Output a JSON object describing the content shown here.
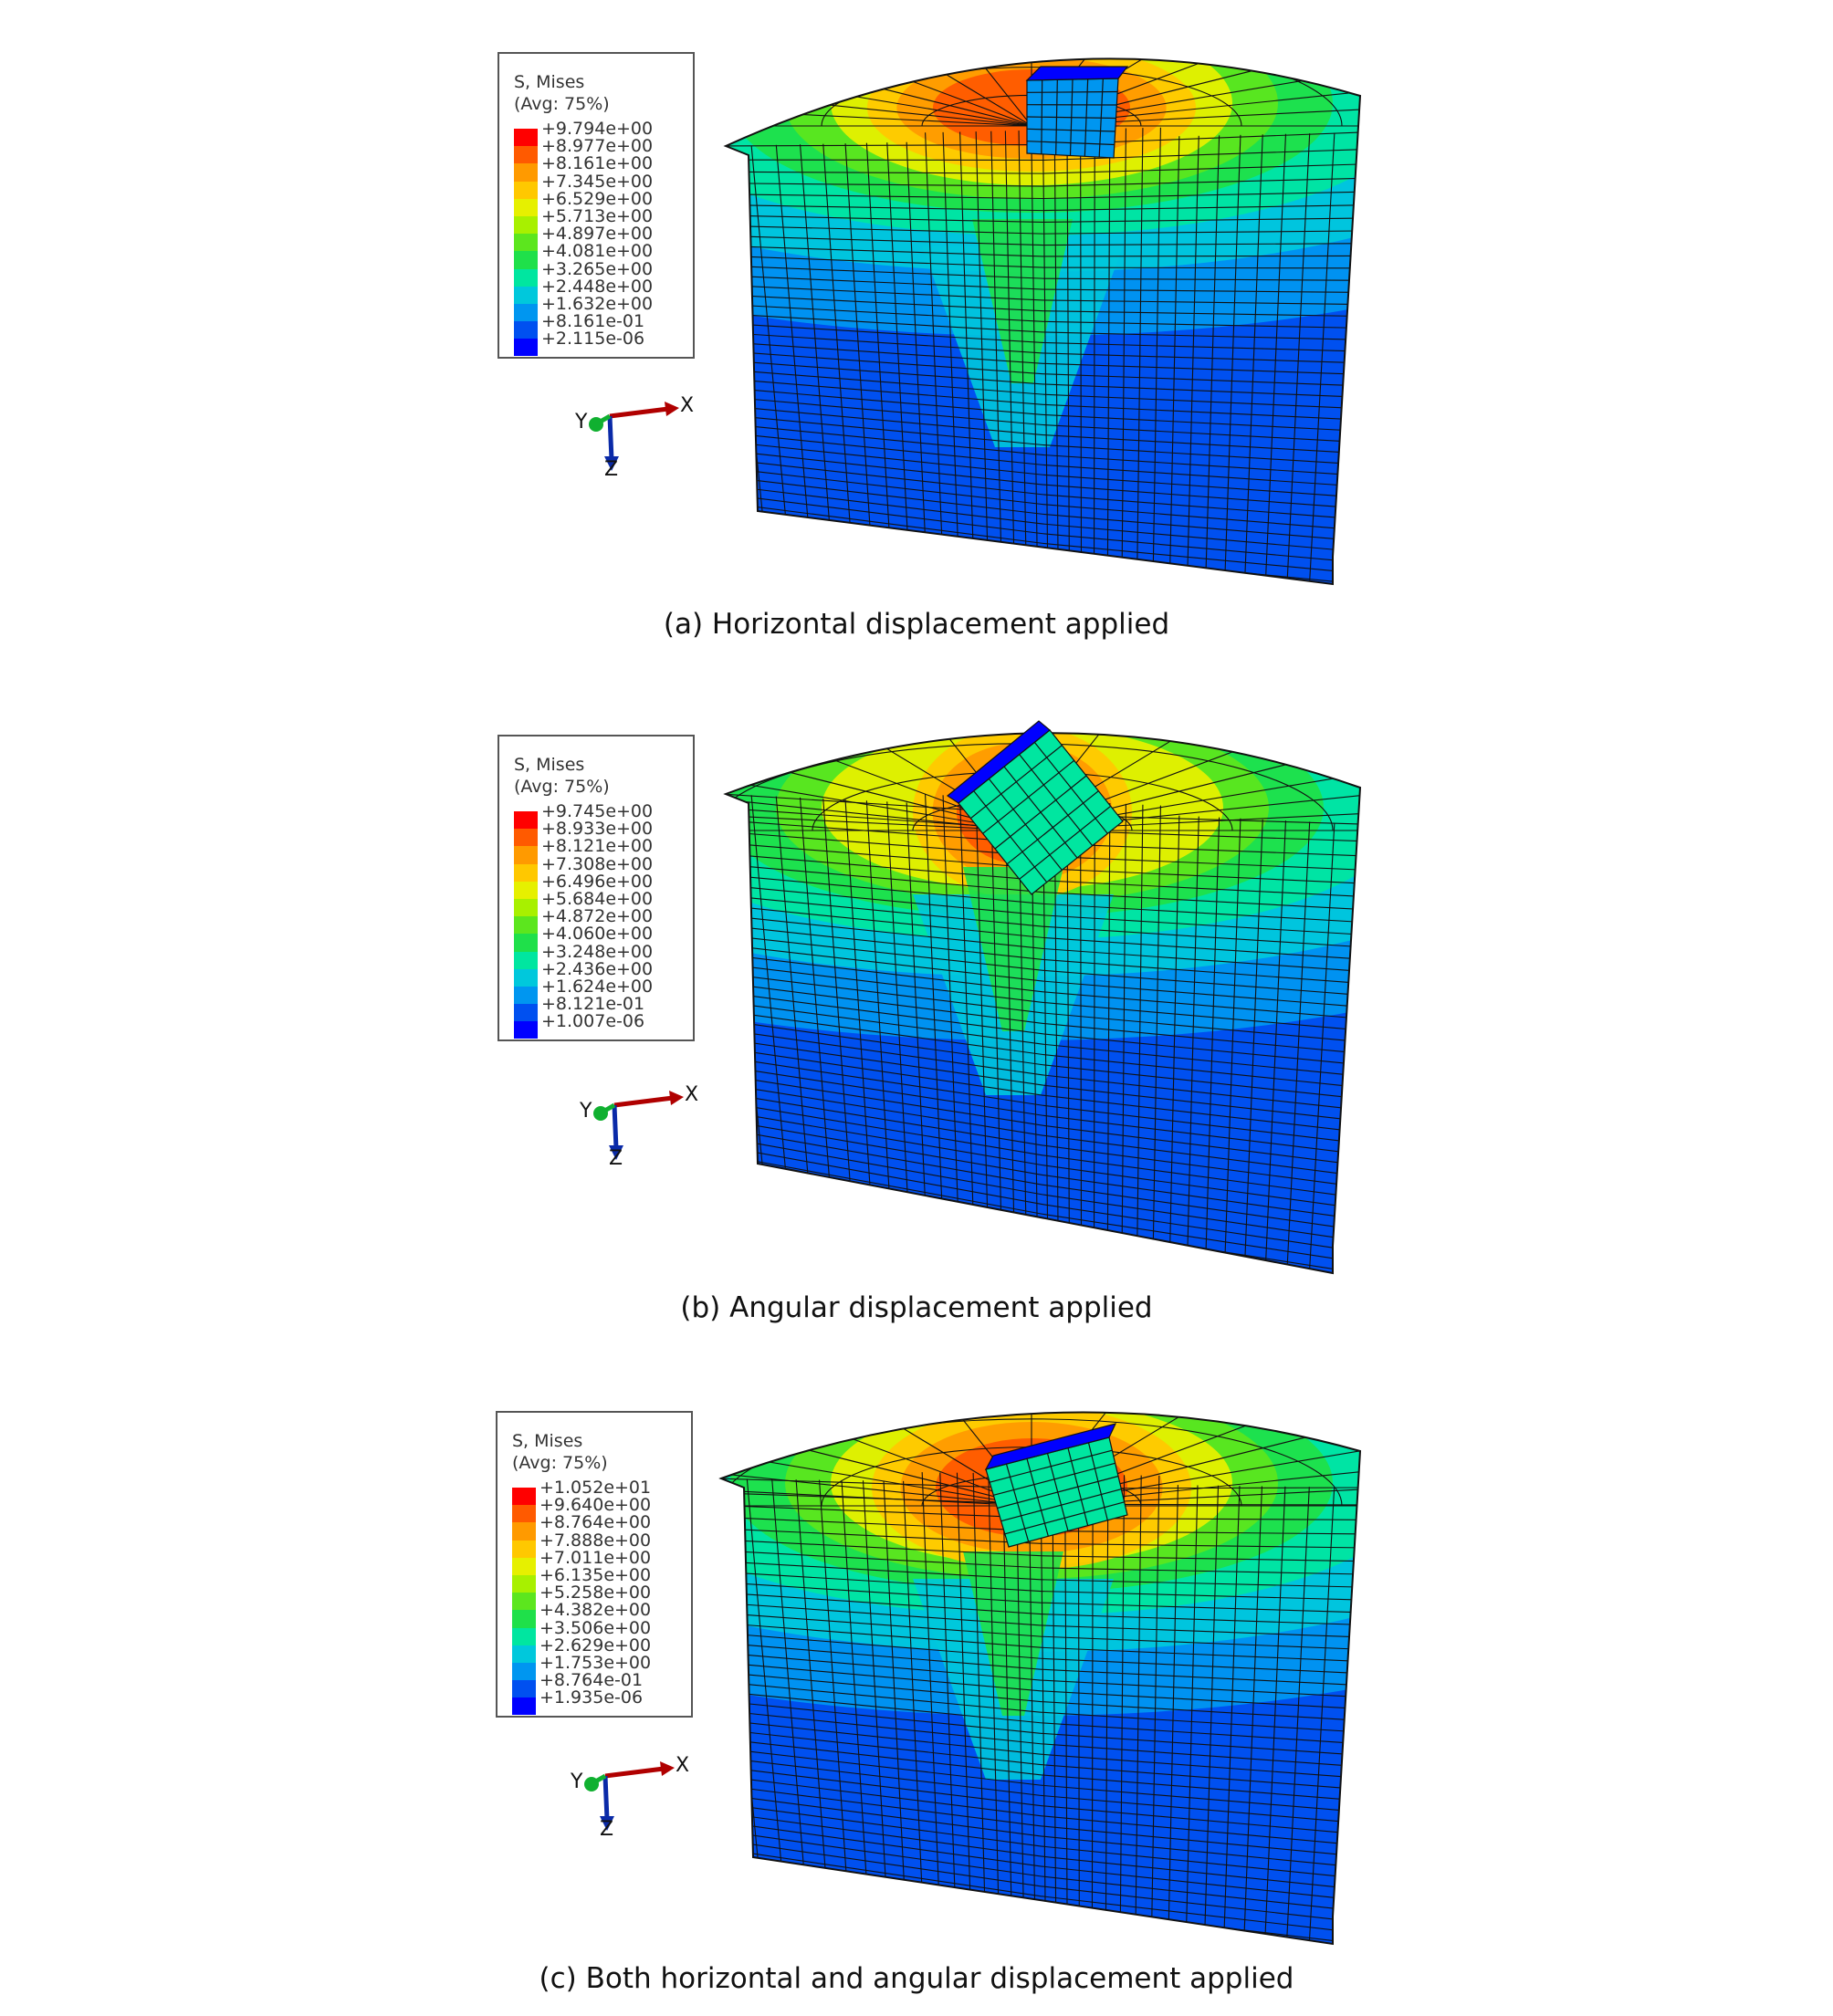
{
  "panels": [
    {
      "caption": "(a) Horizontal displacement applied",
      "legend": {
        "title_line1": "S, Mises",
        "title_line2": "(Avg: 75%)",
        "values": [
          "+9.794e+00",
          "+8.977e+00",
          "+8.161e+00",
          "+7.345e+00",
          "+6.529e+00",
          "+5.713e+00",
          "+4.897e+00",
          "+4.081e+00",
          "+3.265e+00",
          "+2.448e+00",
          "+1.632e+00",
          "+8.161e-01",
          "+2.115e-06"
        ]
      },
      "triad": {
        "x": "X",
        "y": "Y",
        "z": "Z"
      },
      "block": "upright"
    },
    {
      "caption": "(b) Angular displacement applied",
      "legend": {
        "title_line1": "S, Mises",
        "title_line2": "(Avg: 75%)",
        "values": [
          "+9.745e+00",
          "+8.933e+00",
          "+8.121e+00",
          "+7.308e+00",
          "+6.496e+00",
          "+5.684e+00",
          "+4.872e+00",
          "+4.060e+00",
          "+3.248e+00",
          "+2.436e+00",
          "+1.624e+00",
          "+8.121e-01",
          "+1.007e-06"
        ]
      },
      "triad": {
        "x": "X",
        "y": "Y",
        "z": "Z"
      },
      "block": "rotated"
    },
    {
      "caption": "(c) Both horizontal and angular displacement applied",
      "legend": {
        "title_line1": "S, Mises",
        "title_line2": "(Avg: 75%)",
        "values": [
          "+1.052e+01",
          "+9.640e+00",
          "+8.764e+00",
          "+7.888e+00",
          "+7.011e+00",
          "+6.135e+00",
          "+5.258e+00",
          "+4.382e+00",
          "+3.506e+00",
          "+2.629e+00",
          "+1.753e+00",
          "+8.764e-01",
          "+1.935e-06"
        ]
      },
      "triad": {
        "x": "X",
        "y": "Y",
        "z": "Z"
      },
      "block": "tilted"
    }
  ],
  "colors": {
    "contour_scale": [
      "#ff0000",
      "#ff5a00",
      "#ff9a00",
      "#ffc800",
      "#e6f000",
      "#a8f000",
      "#5ce61e",
      "#1fe04a",
      "#00e6a0",
      "#00c8dc",
      "#0096f0",
      "#0050f0",
      "#0000ff"
    ],
    "triad_x": "#b00000",
    "triad_y": "#10b030",
    "triad_z": "#0a2aa8",
    "mesh_line": "#111111"
  }
}
